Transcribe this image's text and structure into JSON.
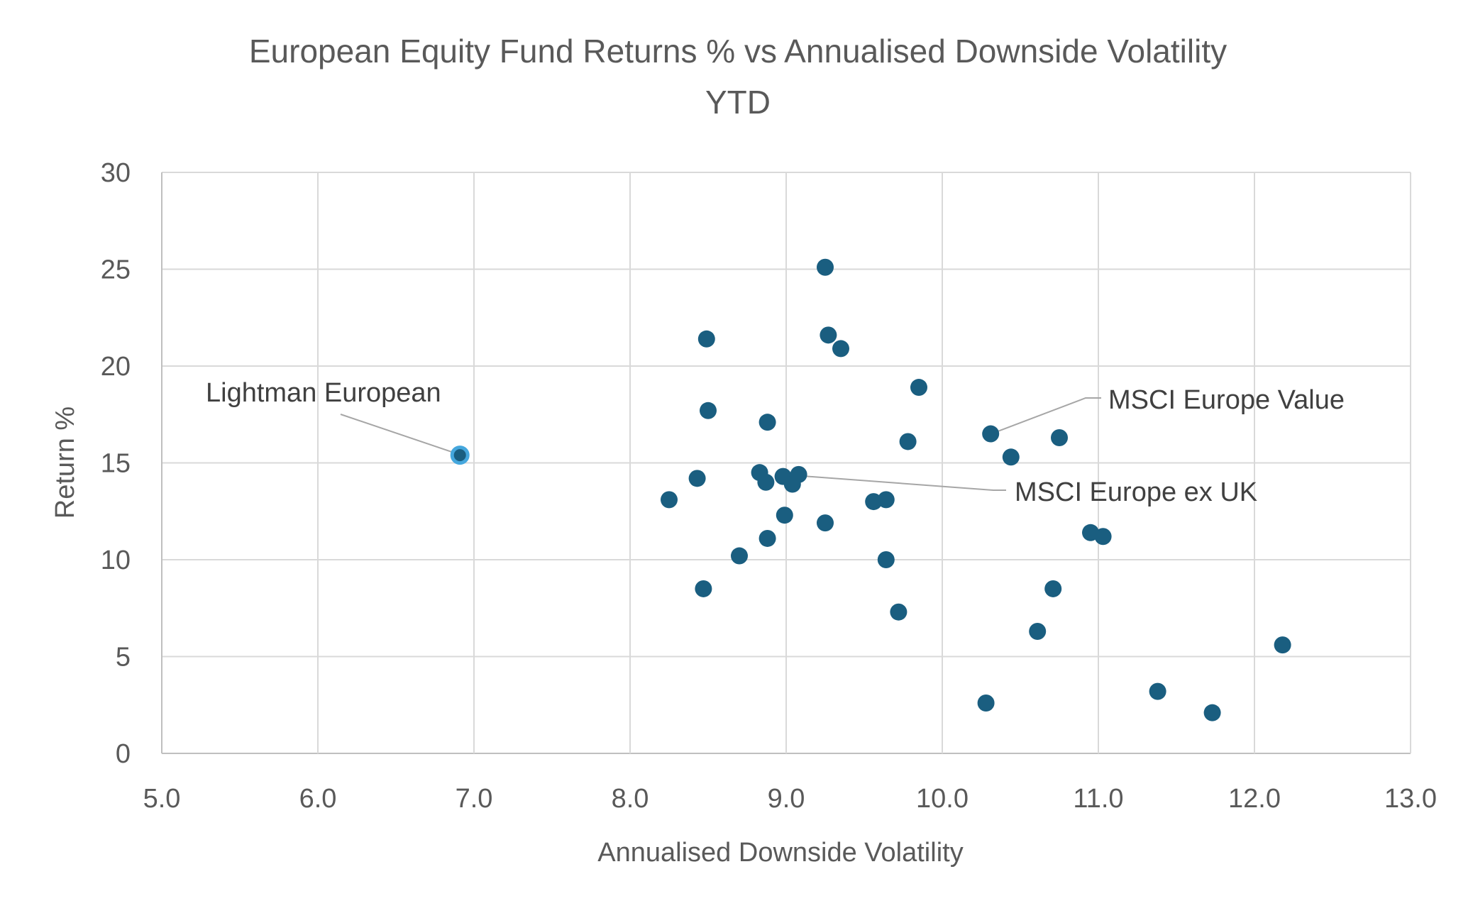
{
  "chart_data": {
    "type": "scatter",
    "title": "European Equity Fund Returns % vs Annualised Downside Volatility",
    "subtitle": "YTD",
    "xlabel": "Annualised Downside Volatility",
    "ylabel": "Return %",
    "xlim": [
      5.0,
      13.0
    ],
    "ylim": [
      0,
      30
    ],
    "x_ticks": [
      "5.0",
      "6.0",
      "7.0",
      "8.0",
      "9.0",
      "10.0",
      "11.0",
      "12.0",
      "13.0"
    ],
    "y_ticks": [
      "0",
      "5",
      "10",
      "15",
      "20",
      "25",
      "30"
    ],
    "x_tick_values": [
      5,
      6,
      7,
      8,
      9,
      10,
      11,
      12,
      13
    ],
    "y_tick_values": [
      0,
      5,
      10,
      15,
      20,
      25,
      30
    ],
    "grid": true,
    "colors": {
      "point": "#1a5e80",
      "highlight_fill": "#1a5e80",
      "highlight_ring": "#45a7dd"
    },
    "points": [
      {
        "x": 9.25,
        "y": 25.1
      },
      {
        "x": 8.49,
        "y": 21.4
      },
      {
        "x": 9.27,
        "y": 21.6
      },
      {
        "x": 9.35,
        "y": 20.9
      },
      {
        "x": 9.85,
        "y": 18.9
      },
      {
        "x": 8.5,
        "y": 17.7
      },
      {
        "x": 8.88,
        "y": 17.1
      },
      {
        "x": 9.78,
        "y": 16.1
      },
      {
        "x": 10.31,
        "y": 16.5
      },
      {
        "x": 10.75,
        "y": 16.3
      },
      {
        "x": 10.44,
        "y": 15.3
      },
      {
        "x": 8.43,
        "y": 14.2
      },
      {
        "x": 8.83,
        "y": 14.5
      },
      {
        "x": 8.87,
        "y": 14.0
      },
      {
        "x": 8.98,
        "y": 14.3
      },
      {
        "x": 9.04,
        "y": 13.9
      },
      {
        "x": 9.08,
        "y": 14.4
      },
      {
        "x": 8.25,
        "y": 13.1
      },
      {
        "x": 9.56,
        "y": 13.0
      },
      {
        "x": 9.64,
        "y": 13.1
      },
      {
        "x": 8.99,
        "y": 12.3
      },
      {
        "x": 9.25,
        "y": 11.9
      },
      {
        "x": 10.95,
        "y": 11.4
      },
      {
        "x": 11.03,
        "y": 11.2
      },
      {
        "x": 8.88,
        "y": 11.1
      },
      {
        "x": 8.7,
        "y": 10.2
      },
      {
        "x": 9.64,
        "y": 10.0
      },
      {
        "x": 8.47,
        "y": 8.5
      },
      {
        "x": 10.71,
        "y": 8.5
      },
      {
        "x": 9.72,
        "y": 7.3
      },
      {
        "x": 10.61,
        "y": 6.3
      },
      {
        "x": 12.18,
        "y": 5.6
      },
      {
        "x": 10.28,
        "y": 2.6
      },
      {
        "x": 11.38,
        "y": 3.2
      },
      {
        "x": 11.73,
        "y": 2.1
      }
    ],
    "highlight": {
      "x": 6.91,
      "y": 15.4,
      "label": "Lightman European"
    },
    "annotations": [
      {
        "label": "MSCI Europe Value",
        "point": {
          "x": 10.31,
          "y": 16.5
        }
      },
      {
        "label": "MSCI Europe ex UK",
        "point": {
          "x": 9.08,
          "y": 14.4
        }
      }
    ]
  }
}
